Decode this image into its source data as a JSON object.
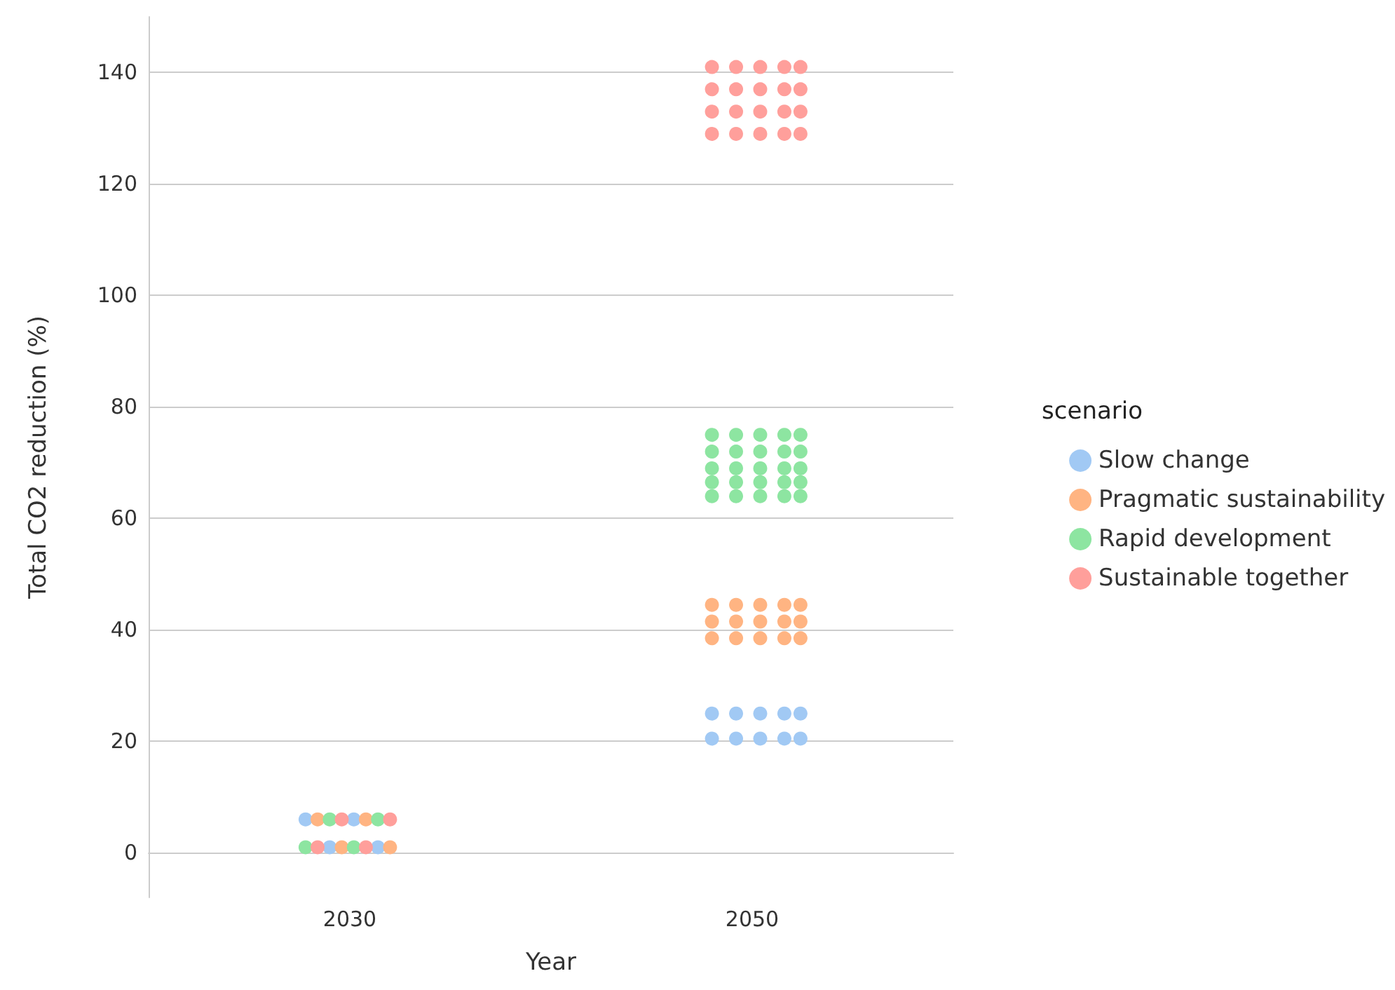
{
  "chart_data": {
    "type": "scatter",
    "xlabel": "Year",
    "ylabel": "Total CO2 reduction (%)",
    "legend_title": "scenario",
    "series": [
      {
        "name": "Slow change",
        "color": "#a1c9f4",
        "x": [
          2027.8,
          2030.2,
          2029.0,
          2031.4,
          2048,
          2049.2,
          2050.4,
          2051.6,
          2052.4,
          2048,
          2049.2,
          2050.4,
          2051.6,
          2052.4
        ],
        "values": [
          6,
          6,
          1,
          1,
          25,
          25,
          25,
          25,
          25,
          20.5,
          20.5,
          20.5,
          20.5,
          20.5
        ]
      },
      {
        "name": "Pragmatic sustainability",
        "color": "#ffb482",
        "x": [
          2028.4,
          2030.8,
          2029.6,
          2032.0,
          2048,
          2049.2,
          2050.4,
          2051.6,
          2052.4,
          2048,
          2049.2,
          2050.4,
          2051.6,
          2052.4,
          2048,
          2049.2,
          2050.4,
          2051.6,
          2052.4
        ],
        "values": [
          6,
          6,
          1,
          1,
          44.5,
          44.5,
          44.5,
          44.5,
          44.5,
          41.5,
          41.5,
          41.5,
          41.5,
          41.5,
          38.5,
          38.5,
          38.5,
          38.5,
          38.5
        ]
      },
      {
        "name": "Rapid development",
        "color": "#8de5a1",
        "x": [
          2029.0,
          2031.4,
          2027.8,
          2030.2,
          2048,
          2049.2,
          2050.4,
          2051.6,
          2052.4,
          2048,
          2049.2,
          2050.4,
          2051.6,
          2052.4,
          2048,
          2049.2,
          2050.4,
          2051.6,
          2052.4,
          2048,
          2049.2,
          2050.4,
          2051.6,
          2052.4,
          2048,
          2049.2,
          2050.4,
          2051.6,
          2052.4
        ],
        "values": [
          6,
          6,
          1,
          1,
          75,
          75,
          75,
          75,
          75,
          72,
          72,
          72,
          72,
          72,
          69,
          69,
          69,
          69,
          69,
          66.5,
          66.5,
          66.5,
          66.5,
          66.5,
          64,
          64,
          64,
          64,
          64
        ]
      },
      {
        "name": "Sustainable together",
        "color": "#ff9f9b",
        "x": [
          2029.6,
          2032.0,
          2028.4,
          2030.8,
          2048,
          2049.2,
          2050.4,
          2051.6,
          2052.4,
          2048,
          2049.2,
          2050.4,
          2051.6,
          2052.4,
          2048,
          2049.2,
          2050.4,
          2051.6,
          2052.4,
          2048,
          2049.2,
          2050.4,
          2051.6,
          2052.4
        ],
        "values": [
          6,
          6,
          1,
          1,
          141,
          141,
          141,
          141,
          141,
          137,
          137,
          137,
          137,
          137,
          133,
          133,
          133,
          133,
          133,
          129,
          129,
          129,
          129,
          129
        ]
      }
    ],
    "xlim": [
      2020,
      2060
    ],
    "xticks": [
      2030,
      2050
    ],
    "ylim": [
      -8,
      150
    ],
    "yticks": [
      0,
      20,
      40,
      60,
      80,
      100,
      120,
      140
    ],
    "grid": "y",
    "legend": "right",
    "marker": "circle"
  }
}
